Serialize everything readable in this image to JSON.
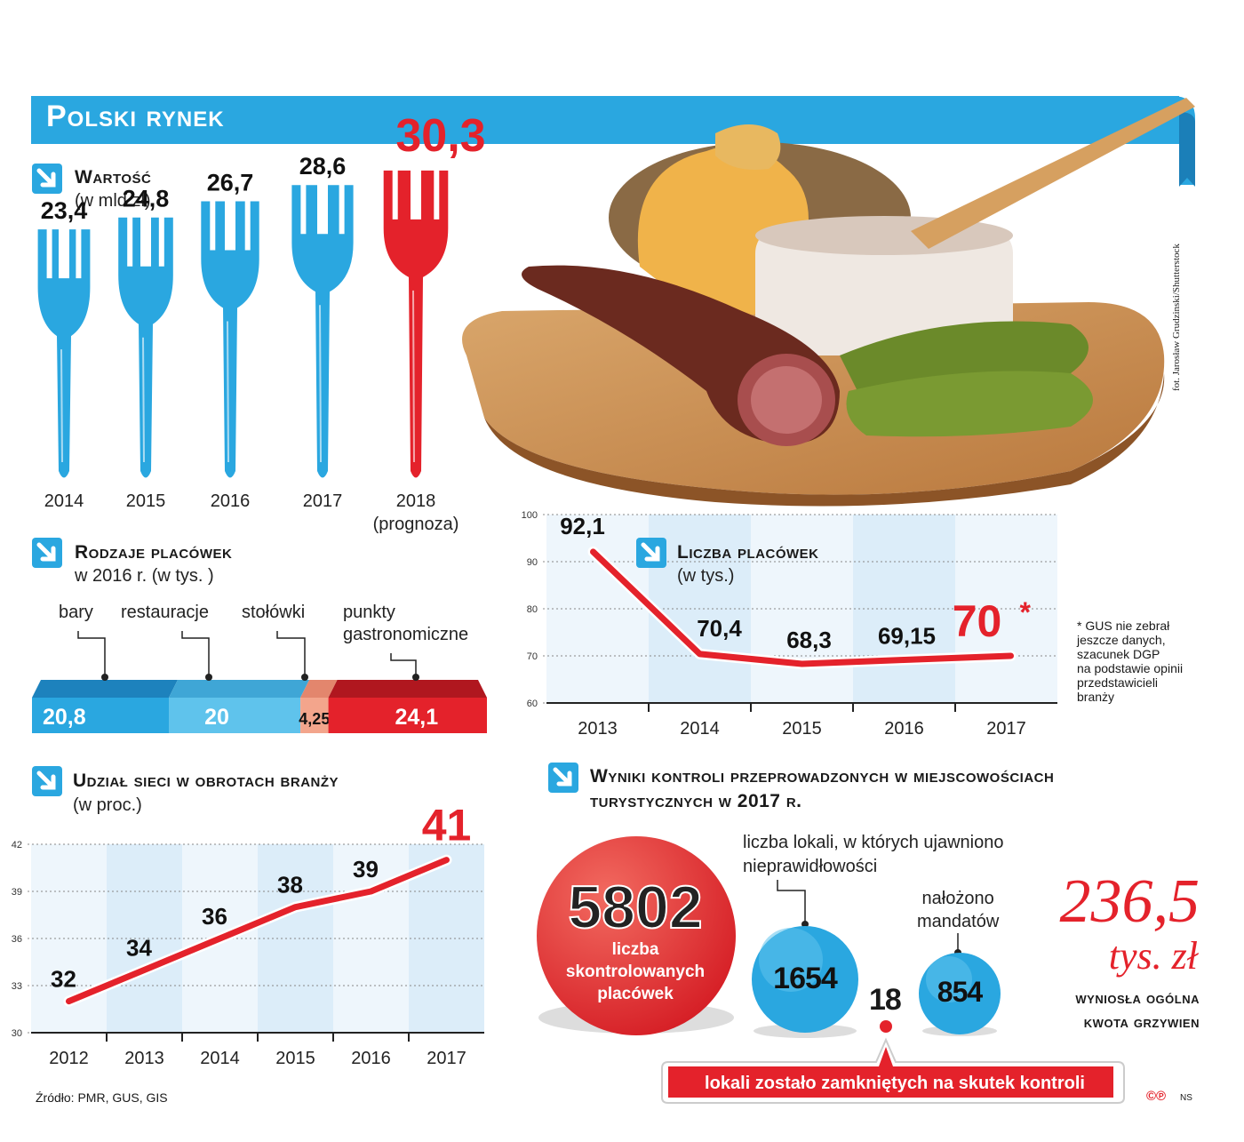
{
  "title": "Polski rynek",
  "photo_credit": "fot. Jarosław Grudzinski/Shutterstock",
  "source": "Źródło: PMR, GUS, GIS",
  "footer_tag": "NS",
  "colors": {
    "blue": "#2aa7e0",
    "blue_light": "#5fc3ec",
    "red": "#e4222b",
    "dark_blue": "#1b7fb8",
    "peach": "#f3a58c"
  },
  "value_section": {
    "title": "Wartość",
    "subtitle": "(w mld zł)"
  },
  "types_section": {
    "title": "Rodzaje placówek",
    "subtitle": "w 2016 r. (w tys. )",
    "labels": [
      "bary",
      "restauracje",
      "stołówki",
      "punkty",
      "gastronomiczne"
    ]
  },
  "count_section": {
    "title": "Liczba placówek",
    "subtitle": "(w tys.)",
    "note": [
      "* GUS nie zebrał",
      "jeszcze danych,",
      "szacunek DGP",
      "na podstawie opinii",
      "przedstawicieli",
      "branży"
    ]
  },
  "share_section": {
    "title": "Udział sieci w obrotach branży",
    "subtitle": "(w proc.)"
  },
  "control_section": {
    "title_line1": "Wyniki kontroli przeprowadzonych w miejscowościach",
    "title_line2": "turystycznych w 2017 r.",
    "checked_value": "5802",
    "checked_label": [
      "liczba",
      "skontrolowanych",
      "placówek"
    ],
    "irregular_label": [
      "liczba lokali, w których ujawniono",
      "nieprawidłowości"
    ],
    "irregular_value": "1654",
    "closed_value": "18",
    "closed_label": "lokali zostało zamkniętych na skutek kontroli",
    "tickets_label": [
      "nałożono",
      "mandatów"
    ],
    "tickets_value": "854",
    "fines_value": "236,5",
    "fines_unit": "tys. zł",
    "fines_label": [
      "wyniosła ogólna",
      "kwota grzywien"
    ]
  },
  "chart_data": [
    {
      "type": "bar",
      "title": "Wartość",
      "subtitle": "(w mld zł)",
      "categories": [
        "2014",
        "2015",
        "2016",
        "2017",
        "2018"
      ],
      "category_notes": [
        "",
        "",
        "",
        "",
        "(prognoza)"
      ],
      "values": [
        23.4,
        24.8,
        26.7,
        28.6,
        30.3
      ],
      "value_labels": [
        "23,4",
        "24,8",
        "26,7",
        "28,6",
        "30,3"
      ],
      "highlight_index": 4
    },
    {
      "type": "bar",
      "title": "Rodzaje placówek",
      "subtitle": "w 2016 r. (w tys. )",
      "categories": [
        "bary",
        "restauracje",
        "stołówki",
        "punkty gastronomiczne"
      ],
      "values": [
        20.8,
        20,
        4.25,
        24.1
      ],
      "value_labels": [
        "20,8",
        "20",
        "4,25",
        "24,1"
      ],
      "stacked": true
    },
    {
      "type": "line",
      "title": "Liczba placówek",
      "subtitle": "(w tys.)",
      "x": [
        "2013",
        "2014",
        "2015",
        "2016",
        "2017"
      ],
      "values": [
        92.1,
        70.4,
        68.3,
        69.15,
        70
      ],
      "value_labels": [
        "92,1",
        "70,4",
        "68,3",
        "69,15",
        "70"
      ],
      "ylim": [
        60,
        100
      ],
      "yticks": [
        60,
        70,
        80,
        90,
        100
      ],
      "grid": true
    },
    {
      "type": "line",
      "title": "Udział sieci w obrotach branży",
      "subtitle": "(w proc.)",
      "x": [
        "2012",
        "2013",
        "2014",
        "2015",
        "2016",
        "2017"
      ],
      "values": [
        32,
        34,
        36,
        38,
        39,
        41
      ],
      "value_labels": [
        "32",
        "34",
        "36",
        "38",
        "39",
        "41"
      ],
      "ylim": [
        30,
        42
      ],
      "yticks": [
        30,
        33,
        36,
        39,
        42
      ],
      "grid": true
    }
  ]
}
